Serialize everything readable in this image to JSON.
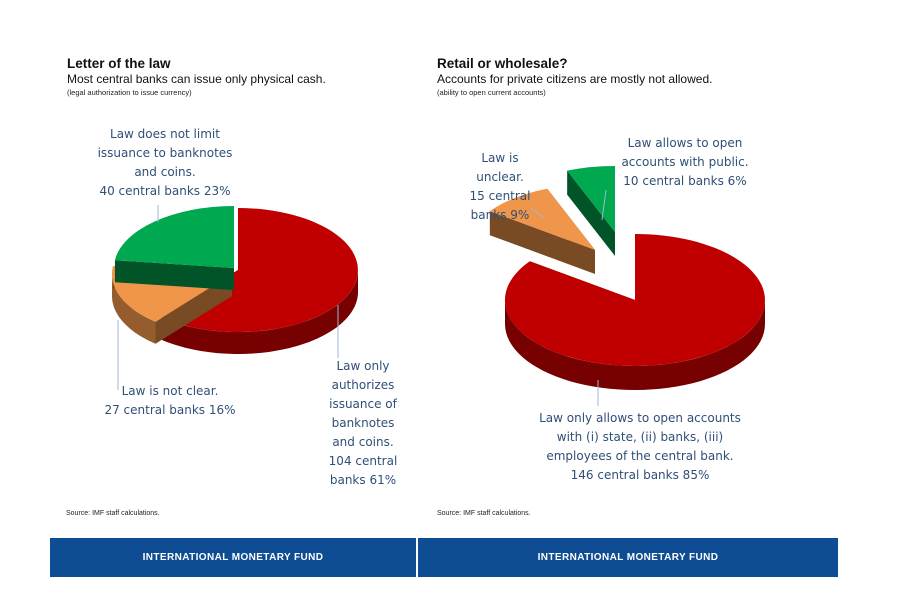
{
  "chart_data": [
    {
      "type": "pie",
      "title": "Letter of the law",
      "subtitle": "Most central banks can issue only physical cash.",
      "note": "(legal authorization to issue currency)",
      "source": "Source: IMF staff calculations.",
      "slices": [
        {
          "label": "Law only authorizes issuance of banknotes and coins.",
          "count": 104,
          "percent": 61,
          "color": "#c00000",
          "label_lines": [
            "Law only",
            "authorizes",
            "issuance of",
            "banknotes",
            "and coins.",
            "104 central",
            "banks 61%"
          ]
        },
        {
          "label": "Law is not clear.",
          "count": 27,
          "percent": 16,
          "color": "#f0964a",
          "label_lines": [
            "Law is not clear.",
            "27 central banks 16%"
          ]
        },
        {
          "label": "Law does not limit issuance to banknotes and coins.",
          "count": 40,
          "percent": 23,
          "color": "#00a84f",
          "label_lines": [
            "Law does not limit",
            "issuance to banknotes",
            "and coins.",
            "40 central banks 23%"
          ]
        }
      ]
    },
    {
      "type": "pie",
      "title": "Retail or wholesale?",
      "subtitle": "Accounts for private citizens are mostly not allowed.",
      "note": "(ability to open current accounts)",
      "source": "Source: IMF staff calculations.",
      "slices": [
        {
          "label": "Law only allows to open accounts with (i) state, (ii) banks, (iii) employees of the central bank.",
          "count": 146,
          "percent": 85,
          "color": "#c00000",
          "label_lines": [
            "Law only allows to open accounts",
            "with (i) state, (ii) banks, (iii)",
            "employees of the central bank.",
            "146 central banks 85%"
          ]
        },
        {
          "label": "Law is unclear.",
          "count": 15,
          "percent": 9,
          "color": "#f0964a",
          "label_lines": [
            "Law is",
            "unclear.",
            "15 central",
            "banks 9%"
          ]
        },
        {
          "label": "Law allows to open accounts with public.",
          "count": 10,
          "percent": 6,
          "color": "#00a84f",
          "label_lines": [
            "Law allows to open",
            "accounts with public.",
            "10 central banks 6%"
          ]
        }
      ]
    }
  ],
  "footer": {
    "left_bar": "INTERNATIONAL MONETARY FUND",
    "right_bar": "INTERNATIONAL MONETARY FUND",
    "bar_color": "#0e4c94"
  }
}
